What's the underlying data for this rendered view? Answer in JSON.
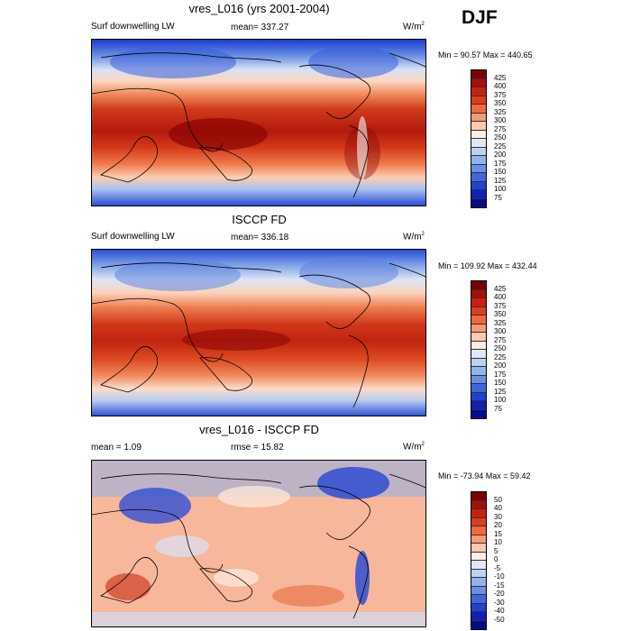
{
  "season": "DJF",
  "panels": [
    {
      "title": "vres_L016 (yrs 2001-2004)",
      "left_label": "Surf downwelling LW",
      "center_label": "mean= 337.27",
      "units": "W/m",
      "units_sup": "2",
      "minmax": "Min =  90.57 Max = 440.65",
      "levels": [
        "425",
        "400",
        "375",
        "350",
        "325",
        "300",
        "275",
        "250",
        "225",
        "200",
        "175",
        "150",
        "125",
        "100",
        "75"
      ]
    },
    {
      "title": "ISCCP FD",
      "left_label": "Surf downwelling LW",
      "center_label": "mean= 336.18",
      "units": "W/m",
      "units_sup": "2",
      "minmax": "Min = 109.92 Max = 432.44",
      "levels": [
        "425",
        "400",
        "375",
        "350",
        "325",
        "300",
        "275",
        "250",
        "225",
        "200",
        "175",
        "150",
        "125",
        "100",
        "75"
      ]
    },
    {
      "title": "vres_L016 - ISCCP FD",
      "left_label": "mean =   1.09",
      "center_label": "rmse =  15.82",
      "units": "W/m",
      "units_sup": "2",
      "minmax": "Min = -73.94 Max =  59.42",
      "levels": [
        "50",
        "40",
        "30",
        "20",
        "15",
        "10",
        "5",
        "0",
        "-5",
        "-10",
        "-15",
        "-20",
        "-30",
        "-40",
        "-50"
      ]
    }
  ],
  "colors": {
    "abs_scale": [
      "#7a0000",
      "#a40f0a",
      "#c8200e",
      "#dd3d1e",
      "#ee6a3e",
      "#f59a74",
      "#fbc9ad",
      "#fdeee3",
      "#dfe8f6",
      "#bdd2f1",
      "#93b3eb",
      "#6a8fe3",
      "#4066db",
      "#2041d1",
      "#1020b5",
      "#060c88"
    ],
    "diff_scale": [
      "#7a0000",
      "#a40f0a",
      "#c8200e",
      "#dd3d1e",
      "#ee6a3e",
      "#f59a74",
      "#fbc9ad",
      "#fdeee3",
      "#dfe8f6",
      "#bdd2f1",
      "#93b3eb",
      "#6a8fe3",
      "#4066db",
      "#2041d1",
      "#1020b5",
      "#060c88"
    ]
  }
}
